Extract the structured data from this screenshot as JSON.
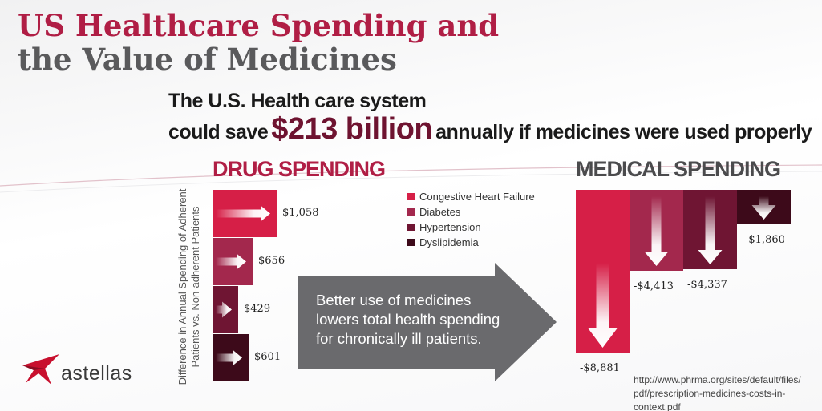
{
  "title": {
    "line1": "US Healthcare Spending and",
    "line2": "the Value of  Medicines"
  },
  "headline": {
    "line1": "The U.S. Health care system",
    "prefix": "could save",
    "amount": "$213 billion",
    "suffix": "annually if medicines were used properly"
  },
  "y_axis_label": {
    "line1": "Difference in Annual Spending of Adherent",
    "line2": "Patients vs. Non-adherent Patients"
  },
  "arrow_text": "Better use of medicines\nlowers total health spending\nfor chronically ill patients.",
  "source": {
    "line1": "http://www.phrma.org/sites/default/files/",
    "line2": "pdf/prescription-medicines-costs-in-context.pdf"
  },
  "logo": {
    "text": "astellas",
    "icon": "astellas-star-icon"
  },
  "colors": {
    "title_red": "#b01e45",
    "title_gray": "#5a5a5c",
    "series": [
      "#d61f47",
      "#a3284d",
      "#6f1533",
      "#3d0a1a"
    ]
  },
  "chart_data": [
    {
      "type": "bar",
      "title": "DRUG SPENDING",
      "categories": [
        "Congestive Heart Failure",
        "Diabetes",
        "Hypertension",
        "Dyslipidemia"
      ],
      "values": [
        1058,
        656,
        429,
        601
      ],
      "labels": [
        "$1,058",
        "$656",
        "$429",
        "$601"
      ],
      "orientation": "horizontal",
      "legend_position": "right"
    },
    {
      "type": "bar",
      "title": "MEDICAL SPENDING",
      "categories": [
        "Congestive Heart Failure",
        "Diabetes",
        "Hypertension",
        "Dyslipidemia"
      ],
      "values": [
        -8881,
        -4413,
        -4337,
        -1860
      ],
      "labels": [
        "-$8,881",
        "-$4,413",
        "-$4,337",
        "-$1,860"
      ],
      "orientation": "vertical"
    }
  ]
}
